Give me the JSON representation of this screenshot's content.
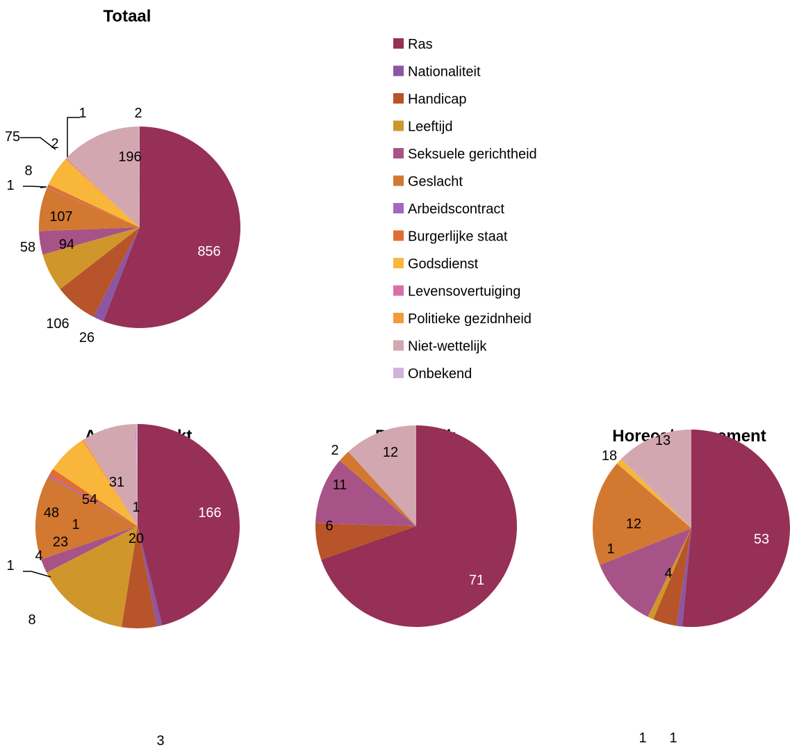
{
  "legend": [
    {
      "label": "Ras",
      "color": "#963056"
    },
    {
      "label": "Nationaliteit",
      "color": "#8c56a3"
    },
    {
      "label": "Handicap",
      "color": "#b85429"
    },
    {
      "label": "Leeftijd",
      "color": "#cf972b"
    },
    {
      "label": "Seksuele gerichtheid",
      "color": "#a85387"
    },
    {
      "label": "Geslacht",
      "color": "#d27830"
    },
    {
      "label": "Arbeidscontract",
      "color": "#a766bd"
    },
    {
      "label": "Burgerlijke staat",
      "color": "#e06d33"
    },
    {
      "label": "Godsdienst",
      "color": "#f8b63a"
    },
    {
      "label": "Levensovertuiging",
      "color": "#d96fa8"
    },
    {
      "label": "Politieke gezidnheid",
      "color": "#f39a3a"
    },
    {
      "label": "Niet-wettelijk",
      "color": "#d3a7b0"
    },
    {
      "label": "Onbekend",
      "color": "#d0b3dc"
    }
  ],
  "chart_data": [
    {
      "type": "pie",
      "title": "Totaal",
      "categories": [
        "Ras",
        "Nationaliteit",
        "Handicap",
        "Leeftijd",
        "Seksuele gerichtheid",
        "Geslacht",
        "Arbeidscontract",
        "Burgerlijke staat",
        "Godsdienst",
        "Levensovertuiging",
        "Politieke gezidnheid",
        "Niet-wettelijk",
        "Onbekend"
      ],
      "values": [
        856,
        26,
        106,
        94,
        58,
        107,
        1,
        8,
        75,
        2,
        1,
        196,
        2
      ]
    },
    {
      "type": "pie",
      "title": "Arbeidsmarkt",
      "categories": [
        "Ras",
        "Nationaliteit",
        "Handicap",
        "Leeftijd",
        "Seksuele gerichtheid",
        "Geslacht",
        "Arbeidscontract",
        "Burgerlijke staat",
        "Godsdienst",
        "Levensovertuiging",
        "Politieke gezidnheid",
        "Niet-wettelijk",
        "Onbekend"
      ],
      "values": [
        166,
        3,
        20,
        54,
        8,
        48,
        1,
        4,
        23,
        0,
        1,
        31,
        1
      ]
    },
    {
      "type": "pie",
      "title": "Buurt/wijk",
      "categories": [
        "Ras",
        "Handicap",
        "Seksuele gerichtheid",
        "Geslacht",
        "Niet-wettelijk"
      ],
      "values": [
        71,
        6,
        11,
        2,
        12
      ]
    },
    {
      "type": "pie",
      "title": "Horeca/amusement",
      "categories": [
        "Ras",
        "Nationaliteit",
        "Handicap",
        "Leeftijd",
        "Seksuele gerichtheid",
        "Geslacht",
        "Godsdienst",
        "Niet-wettelijk"
      ],
      "values": [
        53,
        1,
        4,
        1,
        12,
        18,
        1,
        13
      ]
    }
  ]
}
